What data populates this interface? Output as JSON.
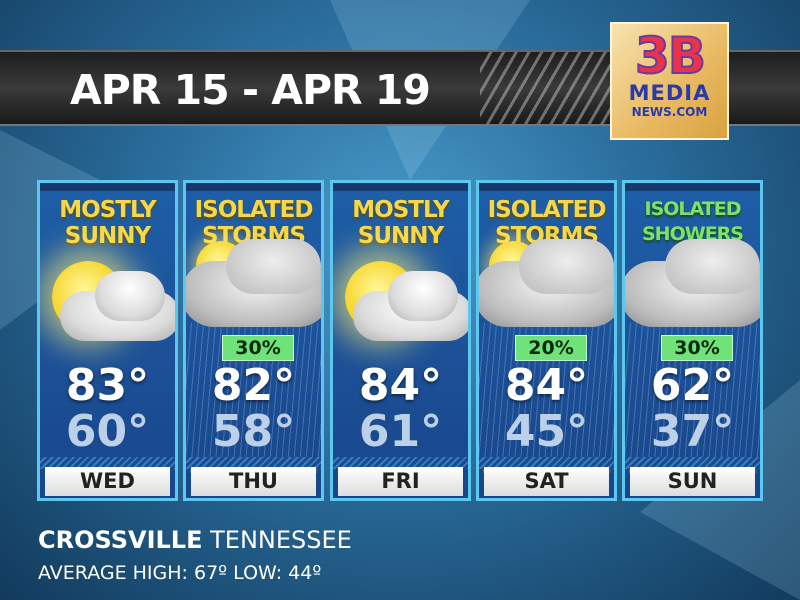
{
  "header": {
    "title": "APR 15 - APR 19"
  },
  "logo": {
    "line1": "3B",
    "line2": "MEDIA",
    "line3": "NEWS.COM"
  },
  "days": [
    {
      "day": "WED",
      "condition": [
        "MOSTLY",
        "SUNNY"
      ],
      "icon": "sun-cloud-icon",
      "high": "83°",
      "low": "60°",
      "precip": null
    },
    {
      "day": "THU",
      "condition": [
        "ISOLATED",
        "STORMS"
      ],
      "icon": "thunderstorm-icon",
      "high": "82°",
      "low": "58°",
      "precip": "30%"
    },
    {
      "day": "FRI",
      "condition": [
        "MOSTLY",
        "SUNNY"
      ],
      "icon": "sun-cloud-icon",
      "high": "84°",
      "low": "61°",
      "precip": null
    },
    {
      "day": "SAT",
      "condition": [
        "ISOLATED",
        "STORMS"
      ],
      "icon": "thunderstorm-icon",
      "high": "84°",
      "low": "45°",
      "precip": "20%"
    },
    {
      "day": "SUN",
      "condition": [
        "ISOLATED",
        "SHOWERS"
      ],
      "icon": "rain-cloud-icon",
      "high": "62°",
      "low": "37°",
      "precip": "30%"
    }
  ],
  "location": {
    "city": "CROSSVILLE",
    "state": "TENNESSEE",
    "average": "AVERAGE HIGH: 67º LOW: 44º"
  },
  "colors": {
    "card_border": "#5cc8f0",
    "condition_yellow": "#f5d84a",
    "condition_green": "#7ee26a",
    "precip_badge": "#6fe27a"
  }
}
